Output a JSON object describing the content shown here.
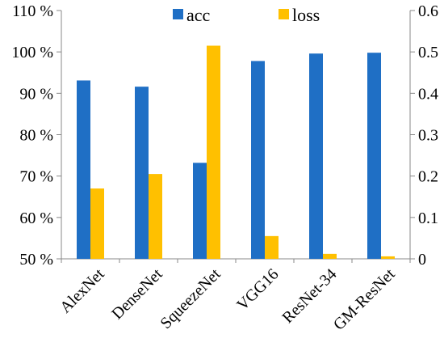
{
  "chart_data": {
    "type": "bar",
    "categories": [
      "AlexNet",
      "DenseNet",
      "SqueezeNet",
      "VGG16",
      "ResNet-34",
      "GM-ResNet"
    ],
    "series": [
      {
        "name": "acc",
        "axis": "left",
        "color": "#1F6FC5",
        "values": [
          93.1,
          91.6,
          73.2,
          97.8,
          99.6,
          99.8
        ]
      },
      {
        "name": "loss",
        "axis": "right",
        "color": "#FFC000",
        "values": [
          0.17,
          0.205,
          0.515,
          0.055,
          0.012,
          0.006
        ]
      }
    ],
    "y_left": {
      "min": 50,
      "max": 110,
      "ticks": [
        "50 %",
        "60 %",
        "70 %",
        "80 %",
        "90 %",
        "100 %",
        "110 %"
      ]
    },
    "y_right": {
      "min": 0,
      "max": 0.6,
      "ticks": [
        "0",
        "0.1",
        "0.2",
        "0.3",
        "0.4",
        "0.5",
        "0.6"
      ]
    },
    "grid": false,
    "legend_position": "top-center",
    "title": "",
    "xlabel": "",
    "ylabel": ""
  }
}
